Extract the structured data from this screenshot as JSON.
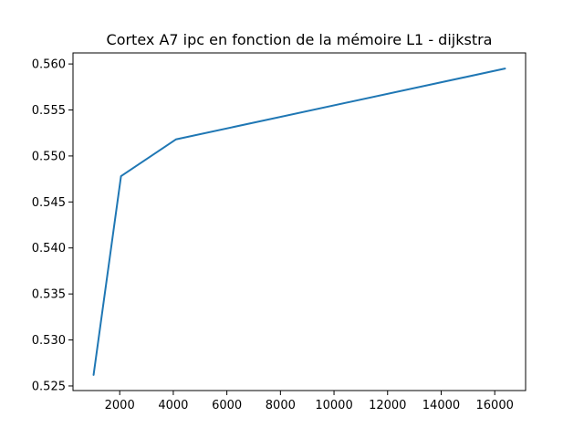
{
  "chart_data": {
    "type": "line",
    "title": "Cortex A7 ipc en fonction de la mémoire L1 - dijkstra",
    "xlabel": "",
    "ylabel": "",
    "x": [
      1024,
      2048,
      4096,
      16384
    ],
    "series": [
      {
        "values": [
          0.5262,
          0.5478,
          0.5518,
          0.5595
        ],
        "color": "#1f77b4"
      }
    ],
    "xlim": [
      256,
      17152
    ],
    "ylim": [
      0.5245,
      0.5612
    ],
    "xticks": [
      2000,
      4000,
      6000,
      8000,
      10000,
      12000,
      14000,
      16000
    ],
    "xtick_labels": [
      "2000",
      "4000",
      "6000",
      "8000",
      "10000",
      "12000",
      "14000",
      "16000"
    ],
    "yticks": [
      0.525,
      0.53,
      0.535,
      0.54,
      0.545,
      0.55,
      0.555,
      0.56
    ],
    "ytick_labels": [
      "0.525",
      "0.530",
      "0.535",
      "0.540",
      "0.545",
      "0.550",
      "0.555",
      "0.560"
    ],
    "grid": false,
    "legend": "none"
  }
}
